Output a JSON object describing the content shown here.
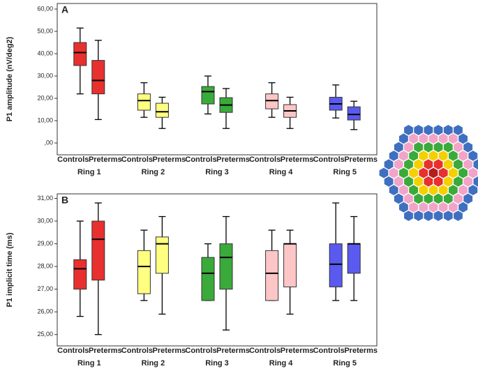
{
  "chart_data": [
    {
      "type": "box",
      "panel": "A",
      "ylabel": "P1 amplitude (nV/deg2)",
      "ylim": [
        -5.3,
        62.5
      ],
      "yticks": [
        {
          "value": 0,
          "label": ",00"
        },
        {
          "value": 10,
          "label": "10,00"
        },
        {
          "value": 20,
          "label": "20,00"
        },
        {
          "value": 30,
          "label": "30,00"
        },
        {
          "value": 40,
          "label": "40,00"
        },
        {
          "value": 50,
          "label": "50,00"
        },
        {
          "value": 60,
          "label": "60,00"
        }
      ],
      "groups": [
        {
          "name": "Ring 1",
          "color": "#e8302e"
        },
        {
          "name": "Ring 2",
          "color": "#ffff80"
        },
        {
          "name": "Ring 3",
          "color": "#3aaa3a"
        },
        {
          "name": "Ring 4",
          "color": "#fcc6c6"
        },
        {
          "name": "Ring 5",
          "color": "#5a5af0"
        }
      ],
      "categories": [
        "Controls",
        "Preterms",
        "Controls",
        "Preterms",
        "Controls",
        "Preterms",
        "Controls",
        "Preterms",
        "Controls",
        "Preterms"
      ],
      "boxes": [
        {
          "low": 22,
          "q1": 34.7,
          "median": 40.5,
          "q3": 45,
          "high": 51.5
        },
        {
          "low": 10.5,
          "q1": 22,
          "median": 28,
          "q3": 37,
          "high": 46
        },
        {
          "low": 11.5,
          "q1": 14.7,
          "median": 19,
          "q3": 22,
          "high": 27
        },
        {
          "low": 6.5,
          "q1": 11.5,
          "median": 14,
          "q3": 17.8,
          "high": 20.5
        },
        {
          "low": 13,
          "q1": 17.5,
          "median": 23,
          "q3": 25.3,
          "high": 30
        },
        {
          "low": 6.5,
          "q1": 13.7,
          "median": 17,
          "q3": 20.3,
          "high": 24.4
        },
        {
          "low": 11.5,
          "q1": 15.3,
          "median": 19,
          "q3": 22,
          "high": 27
        },
        {
          "low": 6.5,
          "q1": 11.5,
          "median": 14.4,
          "q3": 17.2,
          "high": 20.5
        },
        {
          "low": 11.2,
          "q1": 14.7,
          "median": 17.5,
          "q3": 20.5,
          "high": 26
        },
        {
          "low": 6,
          "q1": 10.3,
          "median": 12.8,
          "q3": 16.2,
          "high": 18.7
        }
      ]
    },
    {
      "type": "box",
      "panel": "B",
      "ylabel": "P1 implicit time (ms)",
      "ylim": [
        24.5,
        31.2
      ],
      "yticks": [
        {
          "value": 25,
          "label": "25,00"
        },
        {
          "value": 26,
          "label": "26,00"
        },
        {
          "value": 27,
          "label": "27,00"
        },
        {
          "value": 28,
          "label": "28,00"
        },
        {
          "value": 29,
          "label": "29,00"
        },
        {
          "value": 30,
          "label": "30,00"
        },
        {
          "value": 31,
          "label": "31,00"
        }
      ],
      "groups": [
        {
          "name": "Ring 1",
          "color": "#e8302e"
        },
        {
          "name": "Ring 2",
          "color": "#ffff80"
        },
        {
          "name": "Ring 3",
          "color": "#3aaa3a"
        },
        {
          "name": "Ring 4",
          "color": "#fcc6c6"
        },
        {
          "name": "Ring 5",
          "color": "#5a5af0"
        }
      ],
      "categories": [
        "Controls",
        "Preterms",
        "Controls",
        "Preterms",
        "Controls",
        "Preterms",
        "Controls",
        "Preterms",
        "Controls",
        "Preterms"
      ],
      "boxes": [
        {
          "low": 25.8,
          "q1": 27.0,
          "median": 27.9,
          "q3": 28.3,
          "high": 30.0
        },
        {
          "low": 25.0,
          "q1": 27.4,
          "median": 29.2,
          "q3": 30.0,
          "high": 30.8
        },
        {
          "low": 26.5,
          "q1": 26.8,
          "median": 28.0,
          "q3": 28.7,
          "high": 29.6
        },
        {
          "low": 25.9,
          "q1": 27.7,
          "median": 29.0,
          "q3": 29.3,
          "high": 30.2
        },
        {
          "low": 26.5,
          "q1": 26.5,
          "median": 27.7,
          "q3": 28.4,
          "high": 29.0
        },
        {
          "low": 25.2,
          "q1": 27.0,
          "median": 28.4,
          "q3": 29.0,
          "high": 30.2
        },
        {
          "low": 26.5,
          "q1": 26.5,
          "median": 27.7,
          "q3": 28.7,
          "high": 29.6
        },
        {
          "low": 25.9,
          "q1": 27.1,
          "median": 29.0,
          "q3": 29.0,
          "high": 29.6
        },
        {
          "low": 26.5,
          "q1": 27.1,
          "median": 28.1,
          "q3": 29.0,
          "high": 30.8
        },
        {
          "low": 26.5,
          "q1": 27.7,
          "median": 29.0,
          "q3": 29.0,
          "high": 30.2
        }
      ]
    }
  ]
}
